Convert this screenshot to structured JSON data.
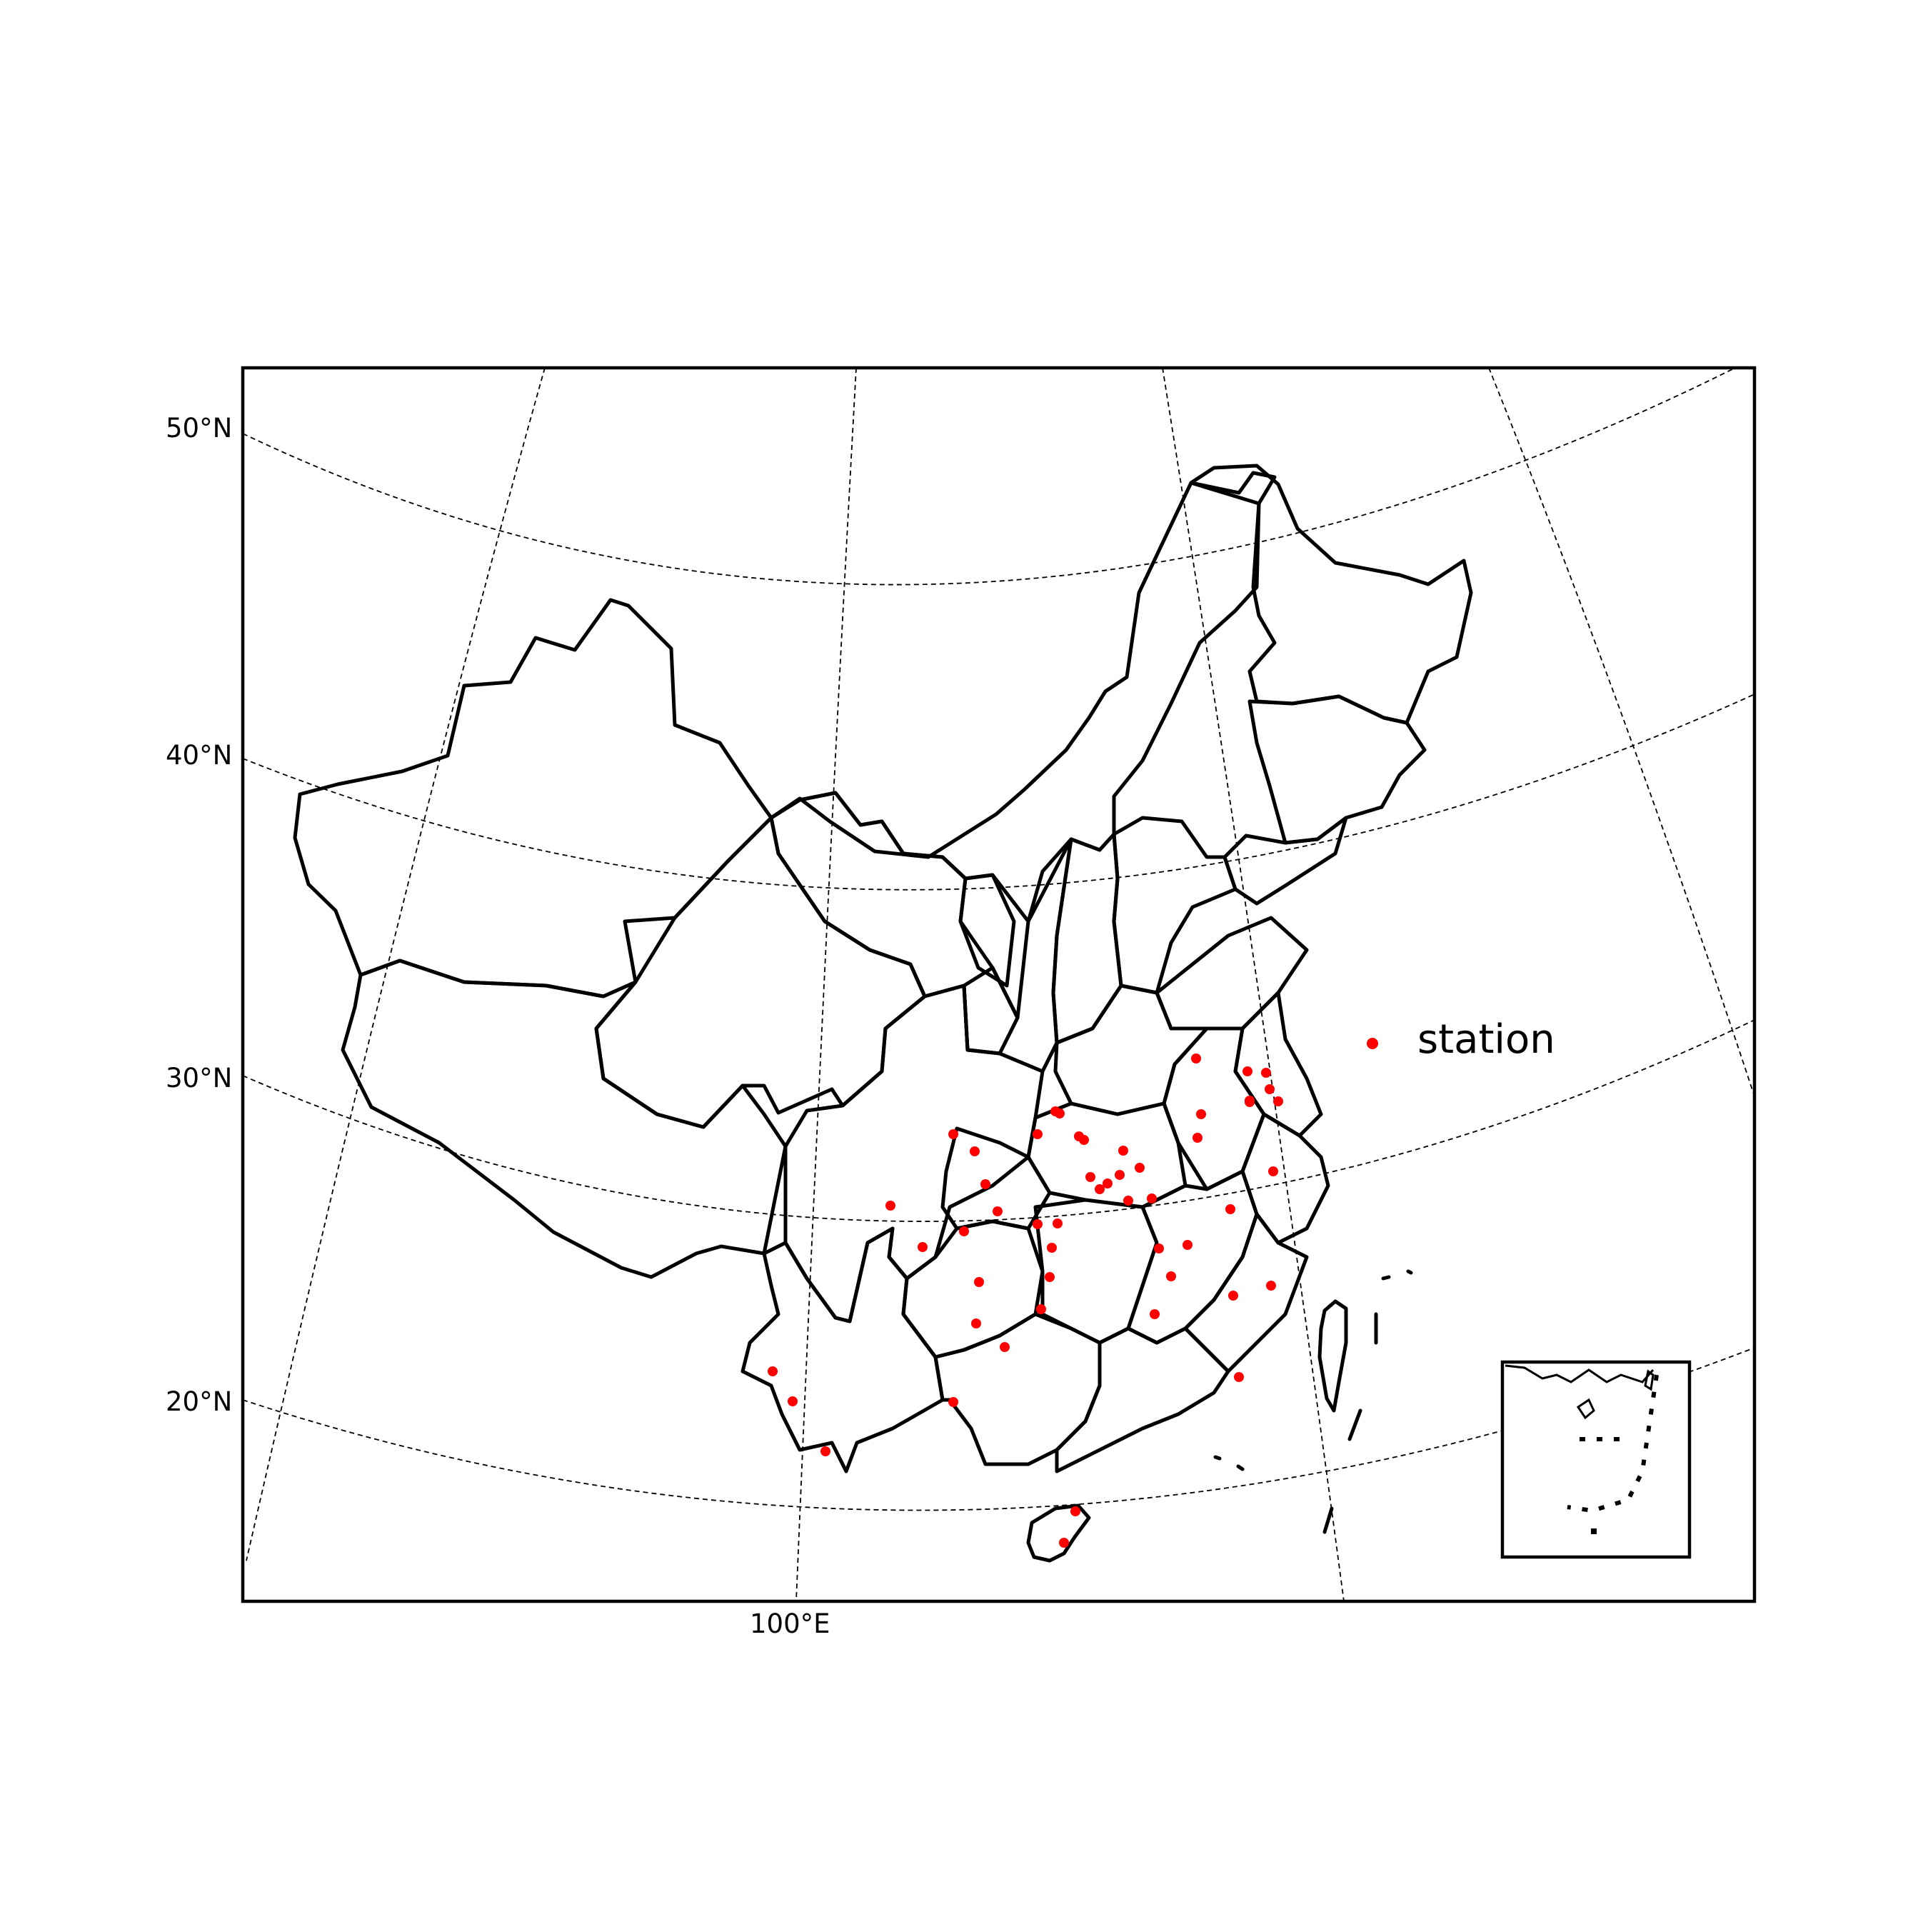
{
  "map": {
    "lat_labels": [
      "50°N",
      "40°N",
      "30°N",
      "20°N"
    ],
    "lon_labels": [
      "100°E"
    ],
    "legend": {
      "label": "station",
      "marker_color": "#ff0000"
    },
    "colors": {
      "station": "#ff0000",
      "boundary": "#000000",
      "background": "#ffffff"
    },
    "inset": "South China Sea islands"
  }
}
